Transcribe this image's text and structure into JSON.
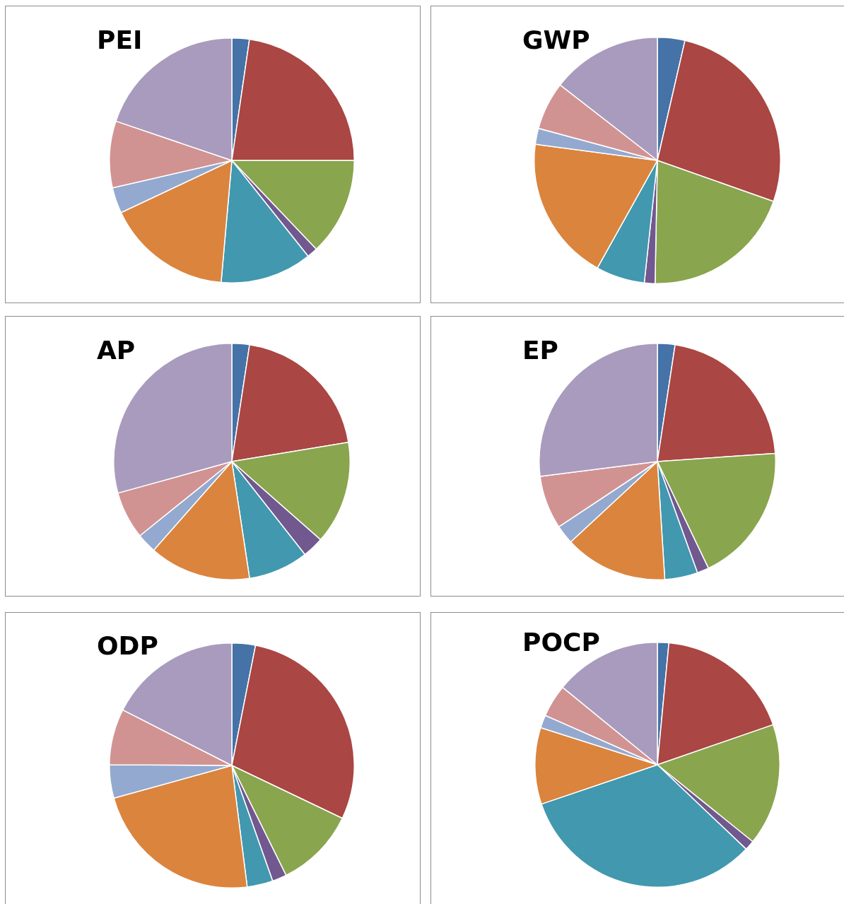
{
  "chart_data": [
    {
      "type": "pie",
      "title": "PEI",
      "categories": [
        null,
        null,
        null,
        null,
        null,
        null,
        null,
        null,
        null
      ],
      "values": [
        2.3,
        22.7,
        12.9,
        1.4,
        12.1,
        16.6,
        3.4,
        8.8,
        19.8
      ],
      "colors": [
        "#4572a7",
        "#aa4643",
        "#89a54e",
        "#71588f",
        "#4198af",
        "#db843d",
        "#93a9cf",
        "#d19392",
        "#a99bbd"
      ]
    },
    {
      "type": "pie",
      "title": "GWP",
      "categories": [
        null,
        null,
        null,
        null,
        null,
        null,
        null,
        null,
        null
      ],
      "values": [
        3.6,
        26.8,
        19.9,
        1.4,
        6.4,
        19.0,
        2.1,
        6.3,
        14.5
      ],
      "colors": [
        "#4572a7",
        "#aa4643",
        "#89a54e",
        "#71588f",
        "#4198af",
        "#db843d",
        "#93a9cf",
        "#d19392",
        "#a99bbd"
      ]
    },
    {
      "type": "pie",
      "title": "AP",
      "categories": [
        null,
        null,
        null,
        null,
        null,
        null,
        null,
        null,
        null
      ],
      "values": [
        2.4,
        20.0,
        14.1,
        2.9,
        8.2,
        13.9,
        2.7,
        6.5,
        29.3
      ],
      "colors": [
        "#4572a7",
        "#aa4643",
        "#89a54e",
        "#71588f",
        "#4198af",
        "#db843d",
        "#93a9cf",
        "#d19392",
        "#a99bbd"
      ]
    },
    {
      "type": "pie",
      "title": "EP",
      "categories": [
        null,
        null,
        null,
        null,
        null,
        null,
        null,
        null,
        null
      ],
      "values": [
        2.4,
        21.5,
        19.0,
        1.6,
        4.5,
        14.1,
        2.6,
        7.3,
        27.0
      ],
      "colors": [
        "#4572a7",
        "#aa4643",
        "#89a54e",
        "#71588f",
        "#4198af",
        "#db843d",
        "#93a9cf",
        "#d19392",
        "#a99bbd"
      ]
    },
    {
      "type": "pie",
      "title": "ODP",
      "categories": [
        null,
        null,
        null,
        null,
        null,
        null,
        null,
        null,
        null
      ],
      "values": [
        3.1,
        29.0,
        10.6,
        1.9,
        3.4,
        22.7,
        4.4,
        7.4,
        17.5
      ],
      "colors": [
        "#4572a7",
        "#aa4643",
        "#89a54e",
        "#71588f",
        "#4198af",
        "#db843d",
        "#93a9cf",
        "#d19392",
        "#a99bbd"
      ]
    },
    {
      "type": "pie",
      "title": "POCP",
      "categories": [
        null,
        null,
        null,
        null,
        null,
        null,
        null,
        null,
        null
      ],
      "values": [
        1.5,
        18.2,
        16.1,
        1.3,
        32.7,
        10.1,
        1.7,
        4.3,
        14.1
      ],
      "colors": [
        "#4572a7",
        "#aa4643",
        "#89a54e",
        "#71588f",
        "#4198af",
        "#db843d",
        "#93a9cf",
        "#d19392",
        "#a99bbd"
      ]
    }
  ]
}
